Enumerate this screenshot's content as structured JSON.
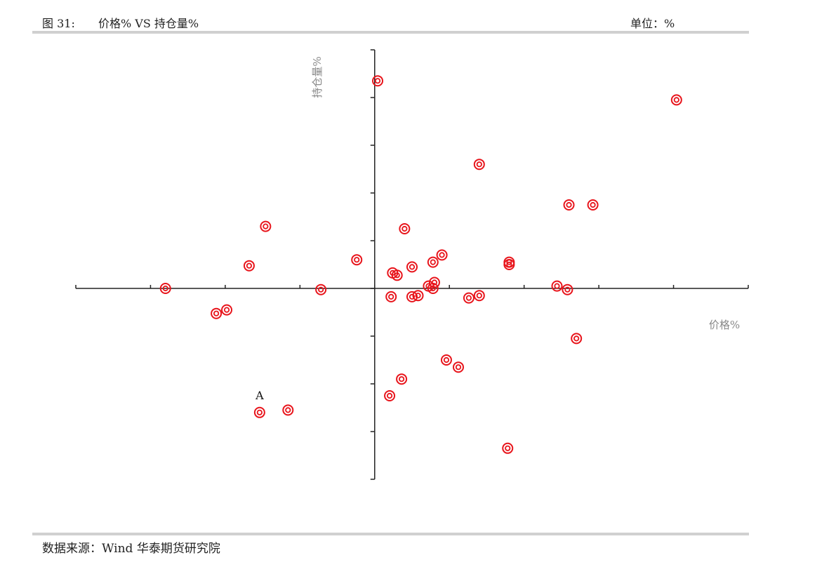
{
  "header": {
    "figure_label": "图 31:",
    "title": "价格% VS 持仓量%",
    "unit": "单位：%"
  },
  "footer": {
    "source": "数据来源：Wind  华泰期货研究院"
  },
  "colors": {
    "marker": "#e8141b",
    "axis": "#222222",
    "rule": "#d0d0d0"
  },
  "chart_data": {
    "type": "scatter",
    "xlabel": "价格%",
    "ylabel": "持仓量%",
    "xlim": [
      -20,
      25
    ],
    "ylim": [
      -8,
      10
    ],
    "grid": false,
    "legend": "none",
    "x_ticks": [
      -20,
      -15,
      -10,
      -5,
      0,
      5,
      10,
      15,
      20,
      25
    ],
    "y_ticks": [
      -8,
      -6,
      -4,
      -2,
      0,
      2,
      4,
      6,
      8,
      10
    ],
    "points": [
      {
        "x": 0.2,
        "y": 8.7
      },
      {
        "x": 20.2,
        "y": 7.9
      },
      {
        "x": 7.0,
        "y": 5.2
      },
      {
        "x": 13.0,
        "y": 3.5
      },
      {
        "x": 14.6,
        "y": 3.5
      },
      {
        "x": -7.3,
        "y": 2.6
      },
      {
        "x": 2.0,
        "y": 2.5
      },
      {
        "x": 4.5,
        "y": 1.4
      },
      {
        "x": -1.2,
        "y": 1.2
      },
      {
        "x": 3.9,
        "y": 1.1
      },
      {
        "x": 9.0,
        "y": 1.1
      },
      {
        "x": 9.0,
        "y": 1.0
      },
      {
        "x": -8.4,
        "y": 0.95
      },
      {
        "x": 2.5,
        "y": 0.9
      },
      {
        "x": 1.2,
        "y": 0.65
      },
      {
        "x": 1.5,
        "y": 0.55
      },
      {
        "x": 4.0,
        "y": 0.25
      },
      {
        "x": 3.6,
        "y": 0.1
      },
      {
        "x": 3.9,
        "y": 0.0
      },
      {
        "x": 12.2,
        "y": 0.1
      },
      {
        "x": 12.9,
        "y": -0.05
      },
      {
        "x": -14.0,
        "y": 0.0
      },
      {
        "x": -3.6,
        "y": -0.05
      },
      {
        "x": 1.1,
        "y": -0.35
      },
      {
        "x": 2.5,
        "y": -0.35
      },
      {
        "x": 2.9,
        "y": -0.3
      },
      {
        "x": 6.3,
        "y": -0.4
      },
      {
        "x": 7.0,
        "y": -0.3
      },
      {
        "x": -9.9,
        "y": -0.9
      },
      {
        "x": -10.6,
        "y": -1.05
      },
      {
        "x": 13.5,
        "y": -2.1
      },
      {
        "x": 4.8,
        "y": -3.0
      },
      {
        "x": 5.6,
        "y": -3.3
      },
      {
        "x": 1.8,
        "y": -3.8
      },
      {
        "x": 1.0,
        "y": -4.5
      },
      {
        "x": -5.8,
        "y": -5.1
      },
      {
        "x": -7.7,
        "y": -5.2,
        "label": "A"
      },
      {
        "x": 8.9,
        "y": -6.7
      }
    ]
  }
}
